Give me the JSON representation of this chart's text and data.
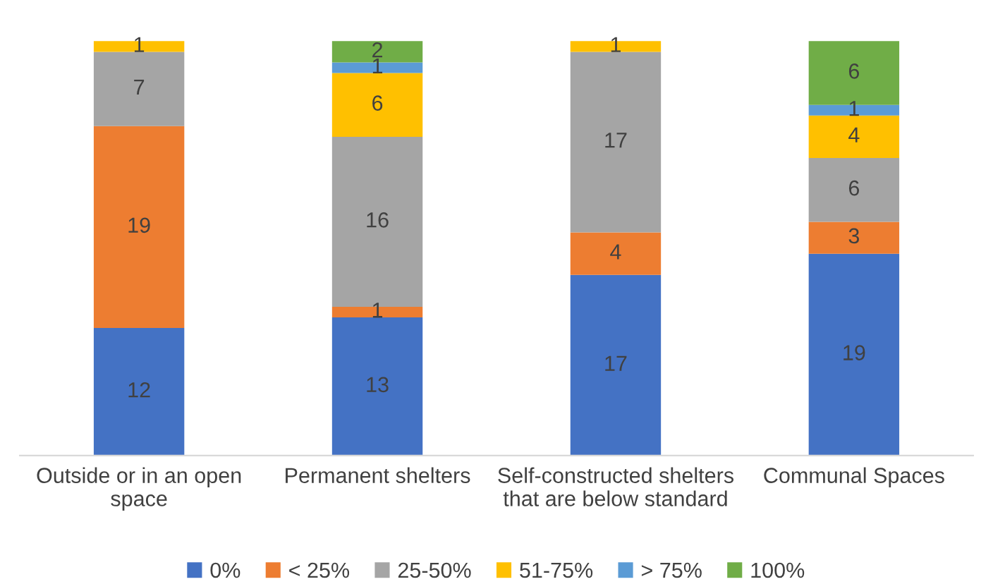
{
  "chart_data": {
    "type": "bar",
    "stacked": true,
    "data_labels": true,
    "legend": "bottom",
    "grid": false,
    "tick_labels": "x",
    "categories": [
      "Outside or in an open\nspace",
      "Permanent shelters",
      "Self-constructed shelters\nthat are below standard",
      "Communal Spaces"
    ],
    "series": [
      {
        "name": "0%",
        "color": "#4472c4",
        "values": [
          12,
          13,
          17,
          19
        ]
      },
      {
        "name": "< 25%",
        "color": "#ed7d31",
        "values": [
          19,
          1,
          4,
          3
        ]
      },
      {
        "name": "25-50%",
        "color": "#a5a5a5",
        "values": [
          7,
          16,
          17,
          6
        ]
      },
      {
        "name": "51-75%",
        "color": "#ffc000",
        "values": [
          1,
          6,
          1,
          4
        ]
      },
      {
        "name": "> 75%",
        "color": "#5b9bd5",
        "values": [
          null,
          1,
          null,
          1
        ]
      },
      {
        "name": "100%",
        "color": "#70ad47",
        "values": [
          null,
          2,
          null,
          6
        ]
      }
    ]
  }
}
